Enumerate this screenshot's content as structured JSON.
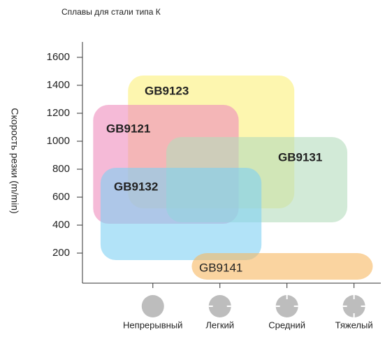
{
  "chart_data": {
    "type": "region",
    "title": "Сплавы для стали типа К",
    "y_label": "Скорость резки   (m/min)",
    "categories": [
      "Непрерывный",
      "Легкий",
      "Средний",
      "Тяжелый"
    ],
    "xlim": [
      -1.05,
      3.4
    ],
    "ylim": [
      0,
      1700
    ],
    "yticks": [
      200,
      400,
      600,
      800,
      1000,
      1200,
      1400,
      1600
    ],
    "series": [
      {
        "name": "GB9123",
        "color": "#fbf07a",
        "x": [
          -0.37,
          2.11
        ],
        "values": [
          520,
          1470
        ]
      },
      {
        "name": "GB9121",
        "color": "#ee8cbd",
        "x": [
          -0.89,
          1.28
        ],
        "values": [
          410,
          1260
        ]
      },
      {
        "name": "GB9131",
        "color": "#b4dcbd",
        "x": [
          0.2,
          2.9
        ],
        "values": [
          420,
          1030
        ]
      },
      {
        "name": "GB9132",
        "color": "#7fd0f3",
        "x": [
          -0.78,
          1.62
        ],
        "values": [
          150,
          810
        ]
      },
      {
        "name": "GB9141",
        "color": "#f6b860",
        "x": [
          0.58,
          3.28
        ],
        "values": [
          10,
          200
        ]
      }
    ]
  }
}
